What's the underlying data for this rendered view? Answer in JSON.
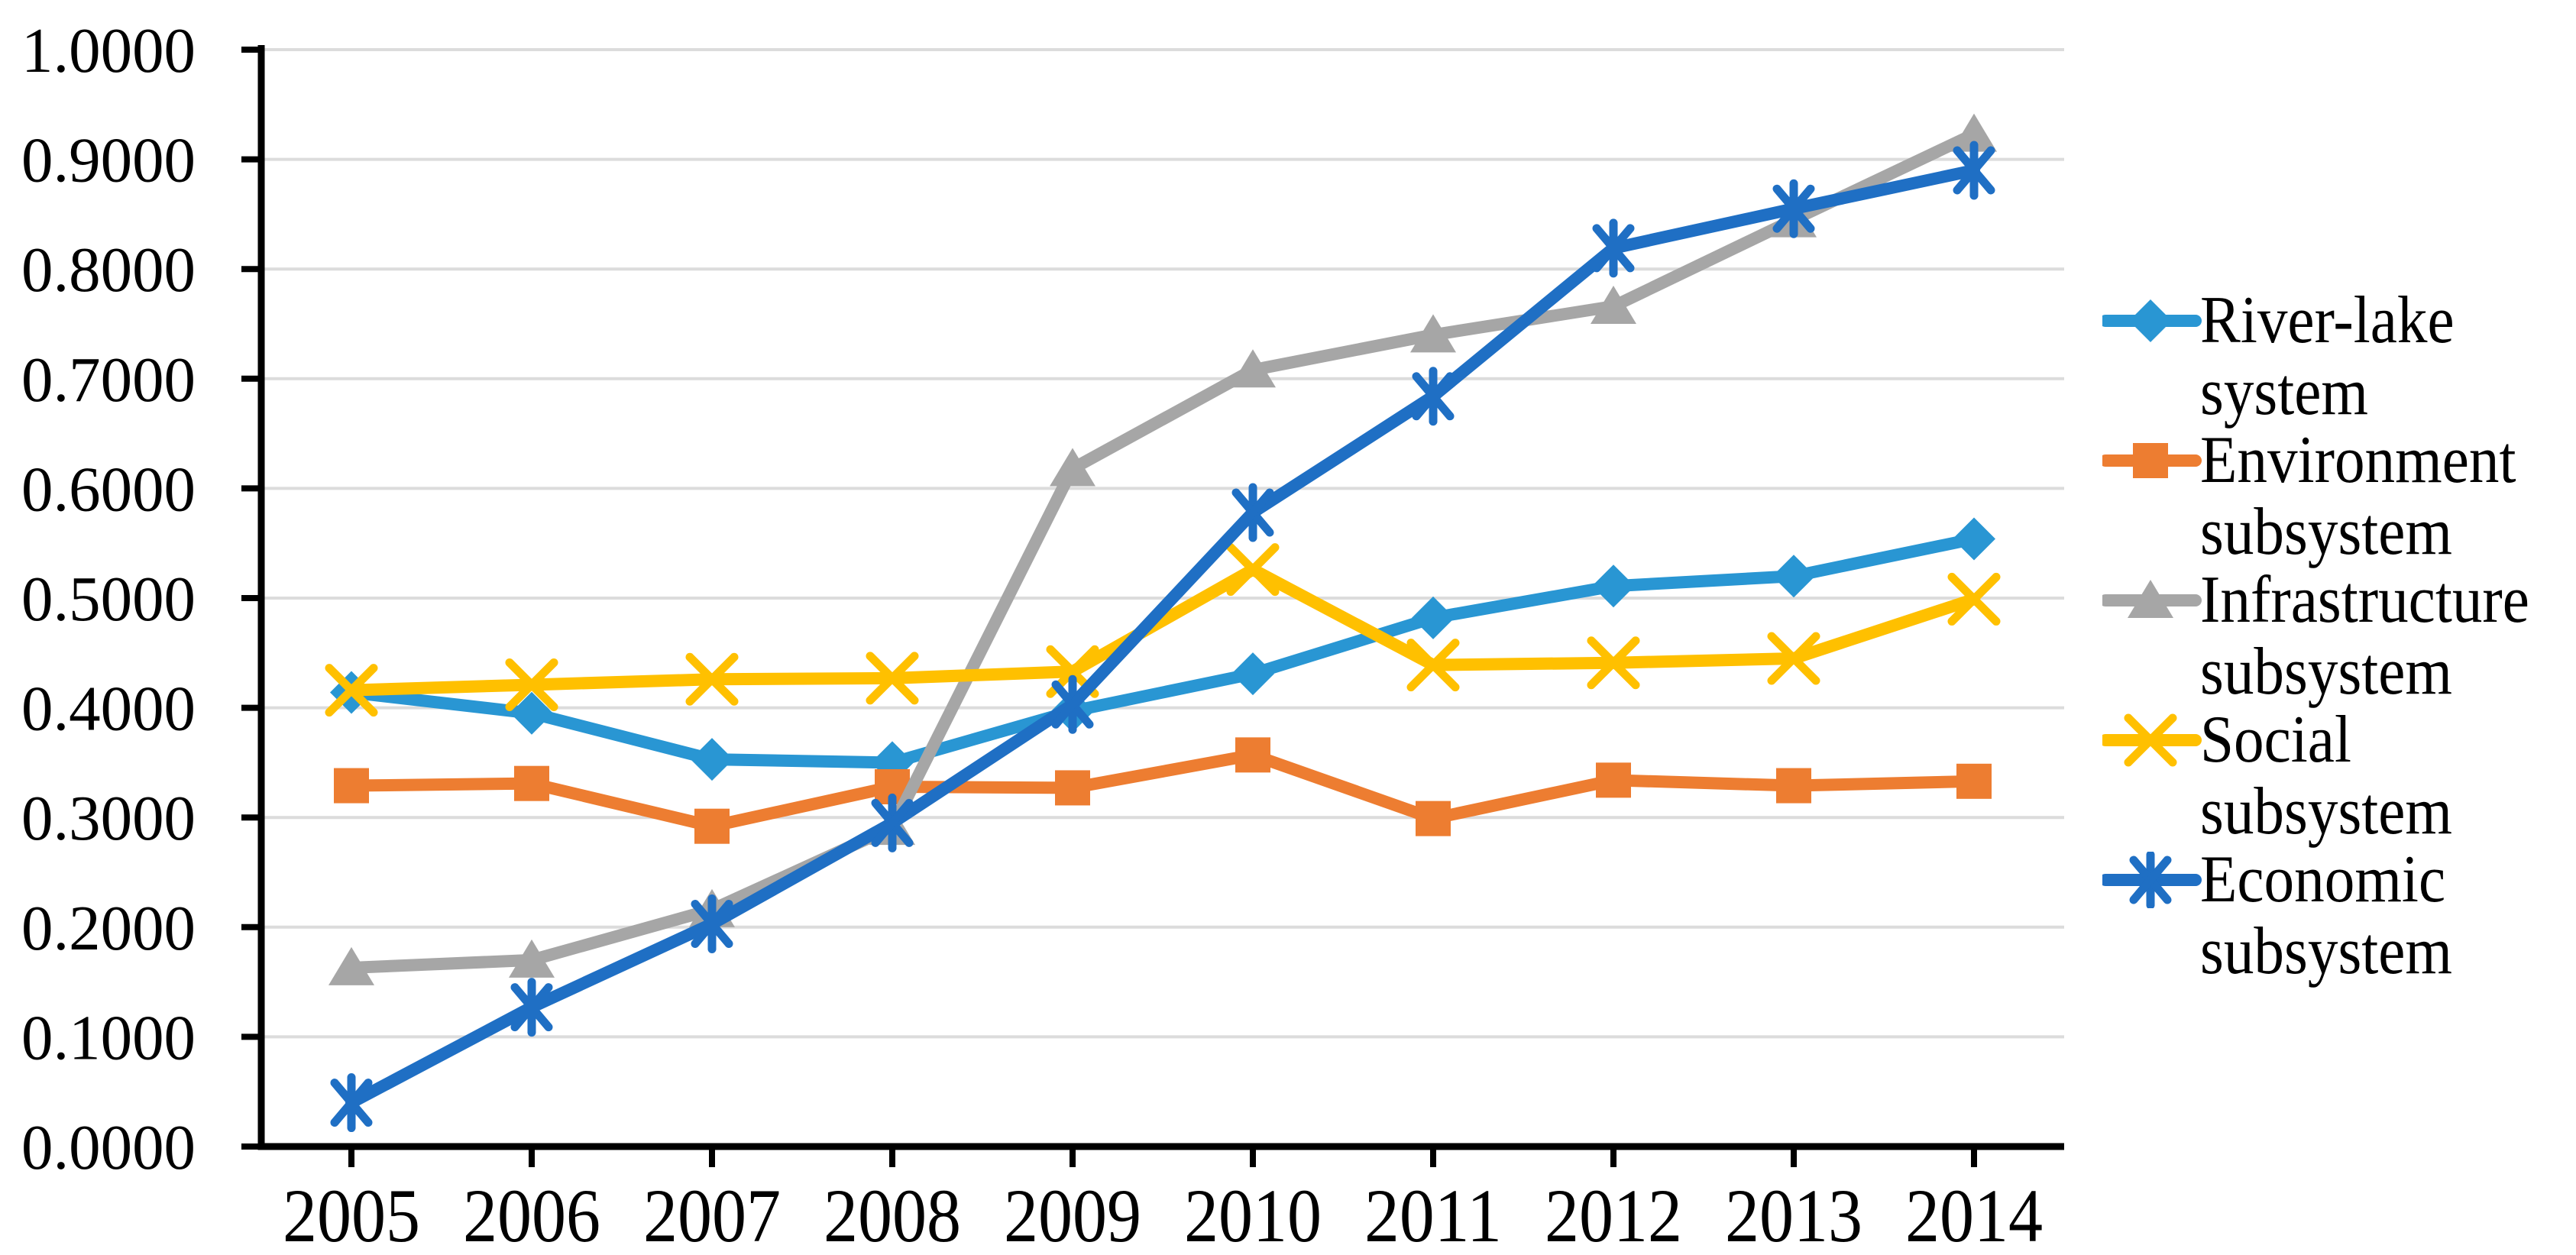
{
  "chart_data": {
    "type": "line",
    "title": "",
    "xlabel": "",
    "ylabel": "",
    "x": [
      "2005",
      "2006",
      "2007",
      "2008",
      "2009",
      "2010",
      "2011",
      "2012",
      "2013",
      "2014"
    ],
    "ylim": [
      0,
      1
    ],
    "ytick_step": 0.1,
    "ytick_labels": [
      "0.0000",
      "0.1000",
      "0.2000",
      "0.3000",
      "0.4000",
      "0.5000",
      "0.6000",
      "0.7000",
      "0.8000",
      "0.9000",
      "1.0000"
    ],
    "grid": "horizontal-major",
    "legend_position": "right",
    "series": [
      {
        "name": "River-lake system",
        "legend_lines": [
          "River-lake",
          "system"
        ],
        "marker": "diamond",
        "color": "#2996D3",
        "values": [
          0.414,
          0.395,
          0.353,
          0.35,
          0.397,
          0.431,
          0.482,
          0.511,
          0.52,
          0.554
        ]
      },
      {
        "name": "Environment subsystem",
        "legend_lines": [
          "Environment",
          "subsystem"
        ],
        "marker": "square",
        "color": "#ED7D31",
        "values": [
          0.329,
          0.331,
          0.292,
          0.328,
          0.327,
          0.357,
          0.299,
          0.334,
          0.329,
          0.333
        ]
      },
      {
        "name": "Infrastructure subsystem",
        "legend_lines": [
          "Infrastructure",
          "subsystem"
        ],
        "marker": "triangle",
        "color": "#A6A6A6",
        "values": [
          0.163,
          0.17,
          0.216,
          0.291,
          0.618,
          0.708,
          0.74,
          0.766,
          0.845,
          0.923
        ]
      },
      {
        "name": "Social subsystem",
        "legend_lines": [
          "Social",
          "subsystem"
        ],
        "marker": "x",
        "color": "#FFC000",
        "values": [
          0.416,
          0.421,
          0.426,
          0.427,
          0.433,
          0.526,
          0.439,
          0.441,
          0.445,
          0.499
        ]
      },
      {
        "name": "Economic subsystem",
        "legend_lines": [
          "Economic",
          "subsystem"
        ],
        "marker": "asterisk",
        "color": "#1F6FC4",
        "values": [
          0.04,
          0.127,
          0.203,
          0.295,
          0.403,
          0.578,
          0.684,
          0.819,
          0.855,
          0.89
        ]
      }
    ],
    "colors": {
      "gridline": "#DCDCDC",
      "axis": "#000000",
      "tick_label": "#000000"
    }
  }
}
